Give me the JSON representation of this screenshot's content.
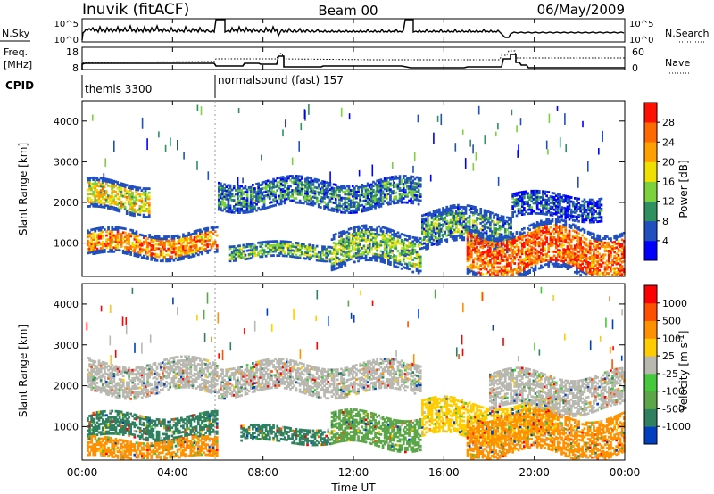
{
  "header": {
    "site": "Inuvik (fitACF)",
    "beam": "Beam 00",
    "date": "06/May/2009"
  },
  "strip_nsky": {
    "left_label": "N.Sky",
    "left_ticks": [
      "10^5",
      "10^0"
    ],
    "right_label": "N.Search",
    "right_ticks": [
      "10^5",
      "10^0"
    ]
  },
  "strip_freq": {
    "left_label_1": "Freq.",
    "left_label_2": "[MHz]",
    "left_ticks": [
      "18",
      "8"
    ],
    "right_label": "Nave",
    "right_ticks": [
      "60",
      "0"
    ]
  },
  "cpid": {
    "label": "CPID",
    "segments": [
      {
        "start_hour": 0,
        "text": "themis 3300"
      },
      {
        "start_hour": 6,
        "text": "normalsound (fast) 157"
      }
    ]
  },
  "time_axis": {
    "label": "Time UT",
    "ticks": [
      "00:00",
      "04:00",
      "08:00",
      "12:00",
      "16:00",
      "20:00",
      "00:00"
    ]
  },
  "chart_data": [
    {
      "type": "heatmap",
      "panel": "power",
      "ylabel": "Slant Range [km]",
      "yticks": [
        1000,
        2000,
        3000,
        4000
      ],
      "ylim": [
        180,
        4500
      ],
      "xlim_hours": [
        0,
        24
      ],
      "colorbar": {
        "label": "Power [dB]",
        "ticks": [
          "28",
          "24",
          "20",
          "16",
          "12",
          "8",
          "4"
        ],
        "colors": [
          "#0000ff",
          "#2050c0",
          "#2f9060",
          "#7bd23c",
          "#f0e000",
          "#ffa000",
          "#ff6a00",
          "#ff1000"
        ]
      },
      "bands": [
        {
          "t0": 0.2,
          "t1": 6.0,
          "r0": 650,
          "r1": 1300,
          "level": 0.72
        },
        {
          "t0": 0.2,
          "t1": 3.0,
          "r0": 1750,
          "r1": 2500,
          "level": 0.55
        },
        {
          "t0": 6.0,
          "t1": 15.0,
          "r0": 1850,
          "r1": 2550,
          "level": 0.28
        },
        {
          "t0": 6.5,
          "t1": 11.0,
          "r0": 600,
          "r1": 1000,
          "level": 0.38
        },
        {
          "t0": 11.0,
          "t1": 15.0,
          "r0": 400,
          "r1": 1300,
          "level": 0.42
        },
        {
          "t0": 15.0,
          "t1": 19.0,
          "r0": 900,
          "r1": 1800,
          "level": 0.33
        },
        {
          "t0": 17.0,
          "t1": 24.0,
          "r0": 200,
          "r1": 1400,
          "level": 0.82
        },
        {
          "t0": 19.0,
          "t1": 23.0,
          "r0": 1600,
          "r1": 2200,
          "level": 0.18
        }
      ]
    },
    {
      "type": "heatmap",
      "panel": "velocity",
      "ylabel": "Slant Range [km]",
      "yticks": [
        1000,
        2000,
        3000,
        4000
      ],
      "ylim": [
        180,
        4500
      ],
      "xlim_hours": [
        0,
        24
      ],
      "xlabel": "Time UT",
      "colorbar": {
        "label": "Velocity [m s^-1]",
        "ticks": [
          "1000",
          "500",
          "100",
          "25",
          "-25",
          "-100",
          "-500",
          "-1000"
        ],
        "colors": [
          "#0040c0",
          "#2f8060",
          "#5aa648",
          "#46c83c",
          "#b8b8b0",
          "#ffcc00",
          "#ff9000",
          "#ff5000",
          "#ff0000"
        ]
      },
      "bands": [
        {
          "t0": 0.2,
          "t1": 6.0,
          "r0": 700,
          "r1": 1300,
          "color": "#2f8060"
        },
        {
          "t0": 0.2,
          "t1": 6.0,
          "r0": 200,
          "r1": 700,
          "color": "#ff9000"
        },
        {
          "t0": 0.2,
          "t1": 6.0,
          "r0": 1800,
          "r1": 2600,
          "color": "#b8b8b0"
        },
        {
          "t0": 6.0,
          "t1": 15.0,
          "r0": 1800,
          "r1": 2550,
          "color": "#b8b8b0"
        },
        {
          "t0": 7.0,
          "t1": 11.0,
          "r0": 600,
          "r1": 1000,
          "color": "#2f8060"
        },
        {
          "t0": 11.0,
          "t1": 15.0,
          "r0": 500,
          "r1": 1300,
          "color": "#5aa648"
        },
        {
          "t0": 15.0,
          "t1": 21.0,
          "r0": 700,
          "r1": 1600,
          "color": "#ffcc00"
        },
        {
          "t0": 17.0,
          "t1": 24.0,
          "r0": 300,
          "r1": 1300,
          "color": "#ff9000"
        },
        {
          "t0": 18.0,
          "t1": 24.0,
          "r0": 1400,
          "r1": 2300,
          "color": "#b8b8b0"
        }
      ]
    }
  ]
}
